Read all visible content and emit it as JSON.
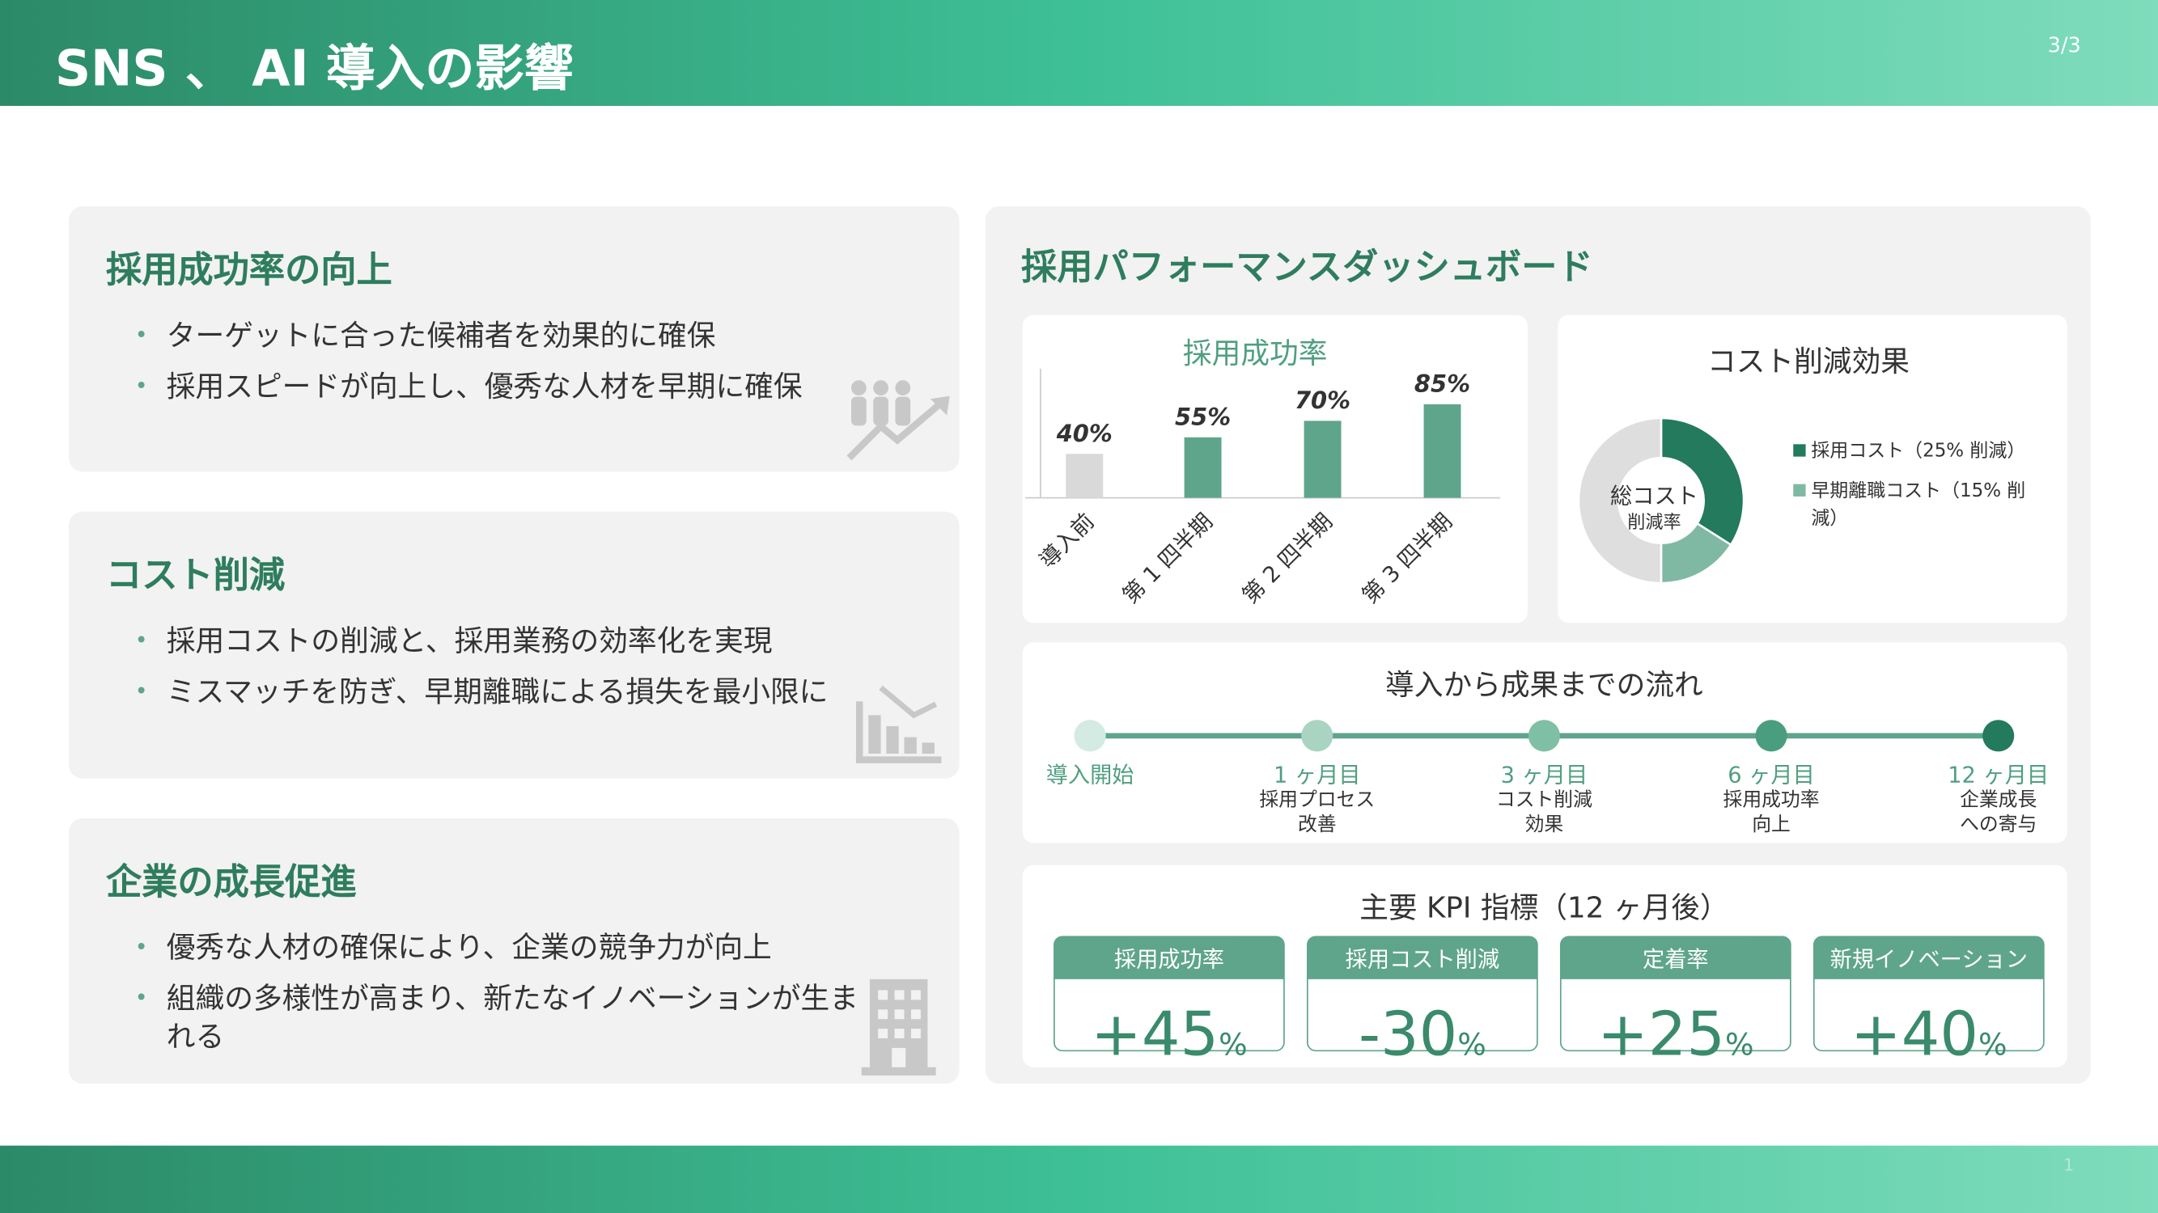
{
  "header": {
    "title": "SNS 、 AI 導入の影響",
    "page": "3/3"
  },
  "footer": {
    "page_number": "1"
  },
  "sections": [
    {
      "title": "採用成功率の向上",
      "bullets": [
        "ターゲットに合った候補者を効果的に確保",
        "採用スピードが向上し、優秀な人材を早期に確保"
      ]
    },
    {
      "title": "コスト削減",
      "bullets": [
        "採用コストの削減と、採用業務の効率化を実現",
        "ミスマッチを防ぎ、早期離職による損失を最小限に"
      ]
    },
    {
      "title": "企業の成長促進",
      "bullets": [
        "優秀な人材の確保により、企業の競争力が向上",
        "組織の多様性が高まり、新たなイノベーションが生まれる"
      ]
    }
  ],
  "dashboard": {
    "title": "採用パフォーマンスダッシュボード",
    "success_chart": {
      "type": "bar",
      "title": "採用成功率",
      "categories": [
        "導入前",
        "第 1 四半期",
        "第 2 四半期",
        "第 3 四半期"
      ],
      "values": [
        40,
        55,
        70,
        85
      ],
      "value_labels": [
        "40%",
        "55%",
        "70%",
        "85%"
      ],
      "colors": [
        "#d9d9d9",
        "#5fa58b",
        "#5fa58b",
        "#5fa58b"
      ],
      "ylim": [
        0,
        115
      ]
    },
    "cost_chart": {
      "type": "donut",
      "title": "コスト削減効果",
      "center_label": [
        "総コスト",
        "削減率"
      ],
      "series": [
        {
          "name": "採用コスト（25% 削減）",
          "color": "#237a5c",
          "value": 34
        },
        {
          "name": "早期離職コスト（15% 削減）",
          "color": "#80b9a3",
          "value": 16
        },
        {
          "color": "#dedede",
          "value": 50
        }
      ]
    },
    "timeline": {
      "title": "導入から成果までの流れ",
      "steps": [
        {
          "label": "導入開始"
        },
        {
          "label": "1 ヶ月目",
          "detail": [
            "採用プロセス",
            "改善"
          ]
        },
        {
          "label": "3 ヶ月目",
          "detail": [
            "コスト削減",
            "効果"
          ]
        },
        {
          "label": "6 ヶ月目",
          "detail": [
            "採用成功率",
            "向上"
          ]
        },
        {
          "label": "12 ヶ月目",
          "detail": [
            "企業成長",
            "への寄与"
          ]
        }
      ]
    },
    "kpi": {
      "title": "主要 KPI 指標（12 ヶ月後）",
      "items": [
        {
          "label": "採用成功率",
          "value": "+45",
          "unit": "%"
        },
        {
          "label": "採用コスト削減",
          "value": "-30",
          "unit": "%"
        },
        {
          "label": "定着率",
          "value": "+25",
          "unit": "%"
        },
        {
          "label": "新規イノベーション",
          "value": "+40",
          "unit": "%"
        }
      ]
    }
  }
}
